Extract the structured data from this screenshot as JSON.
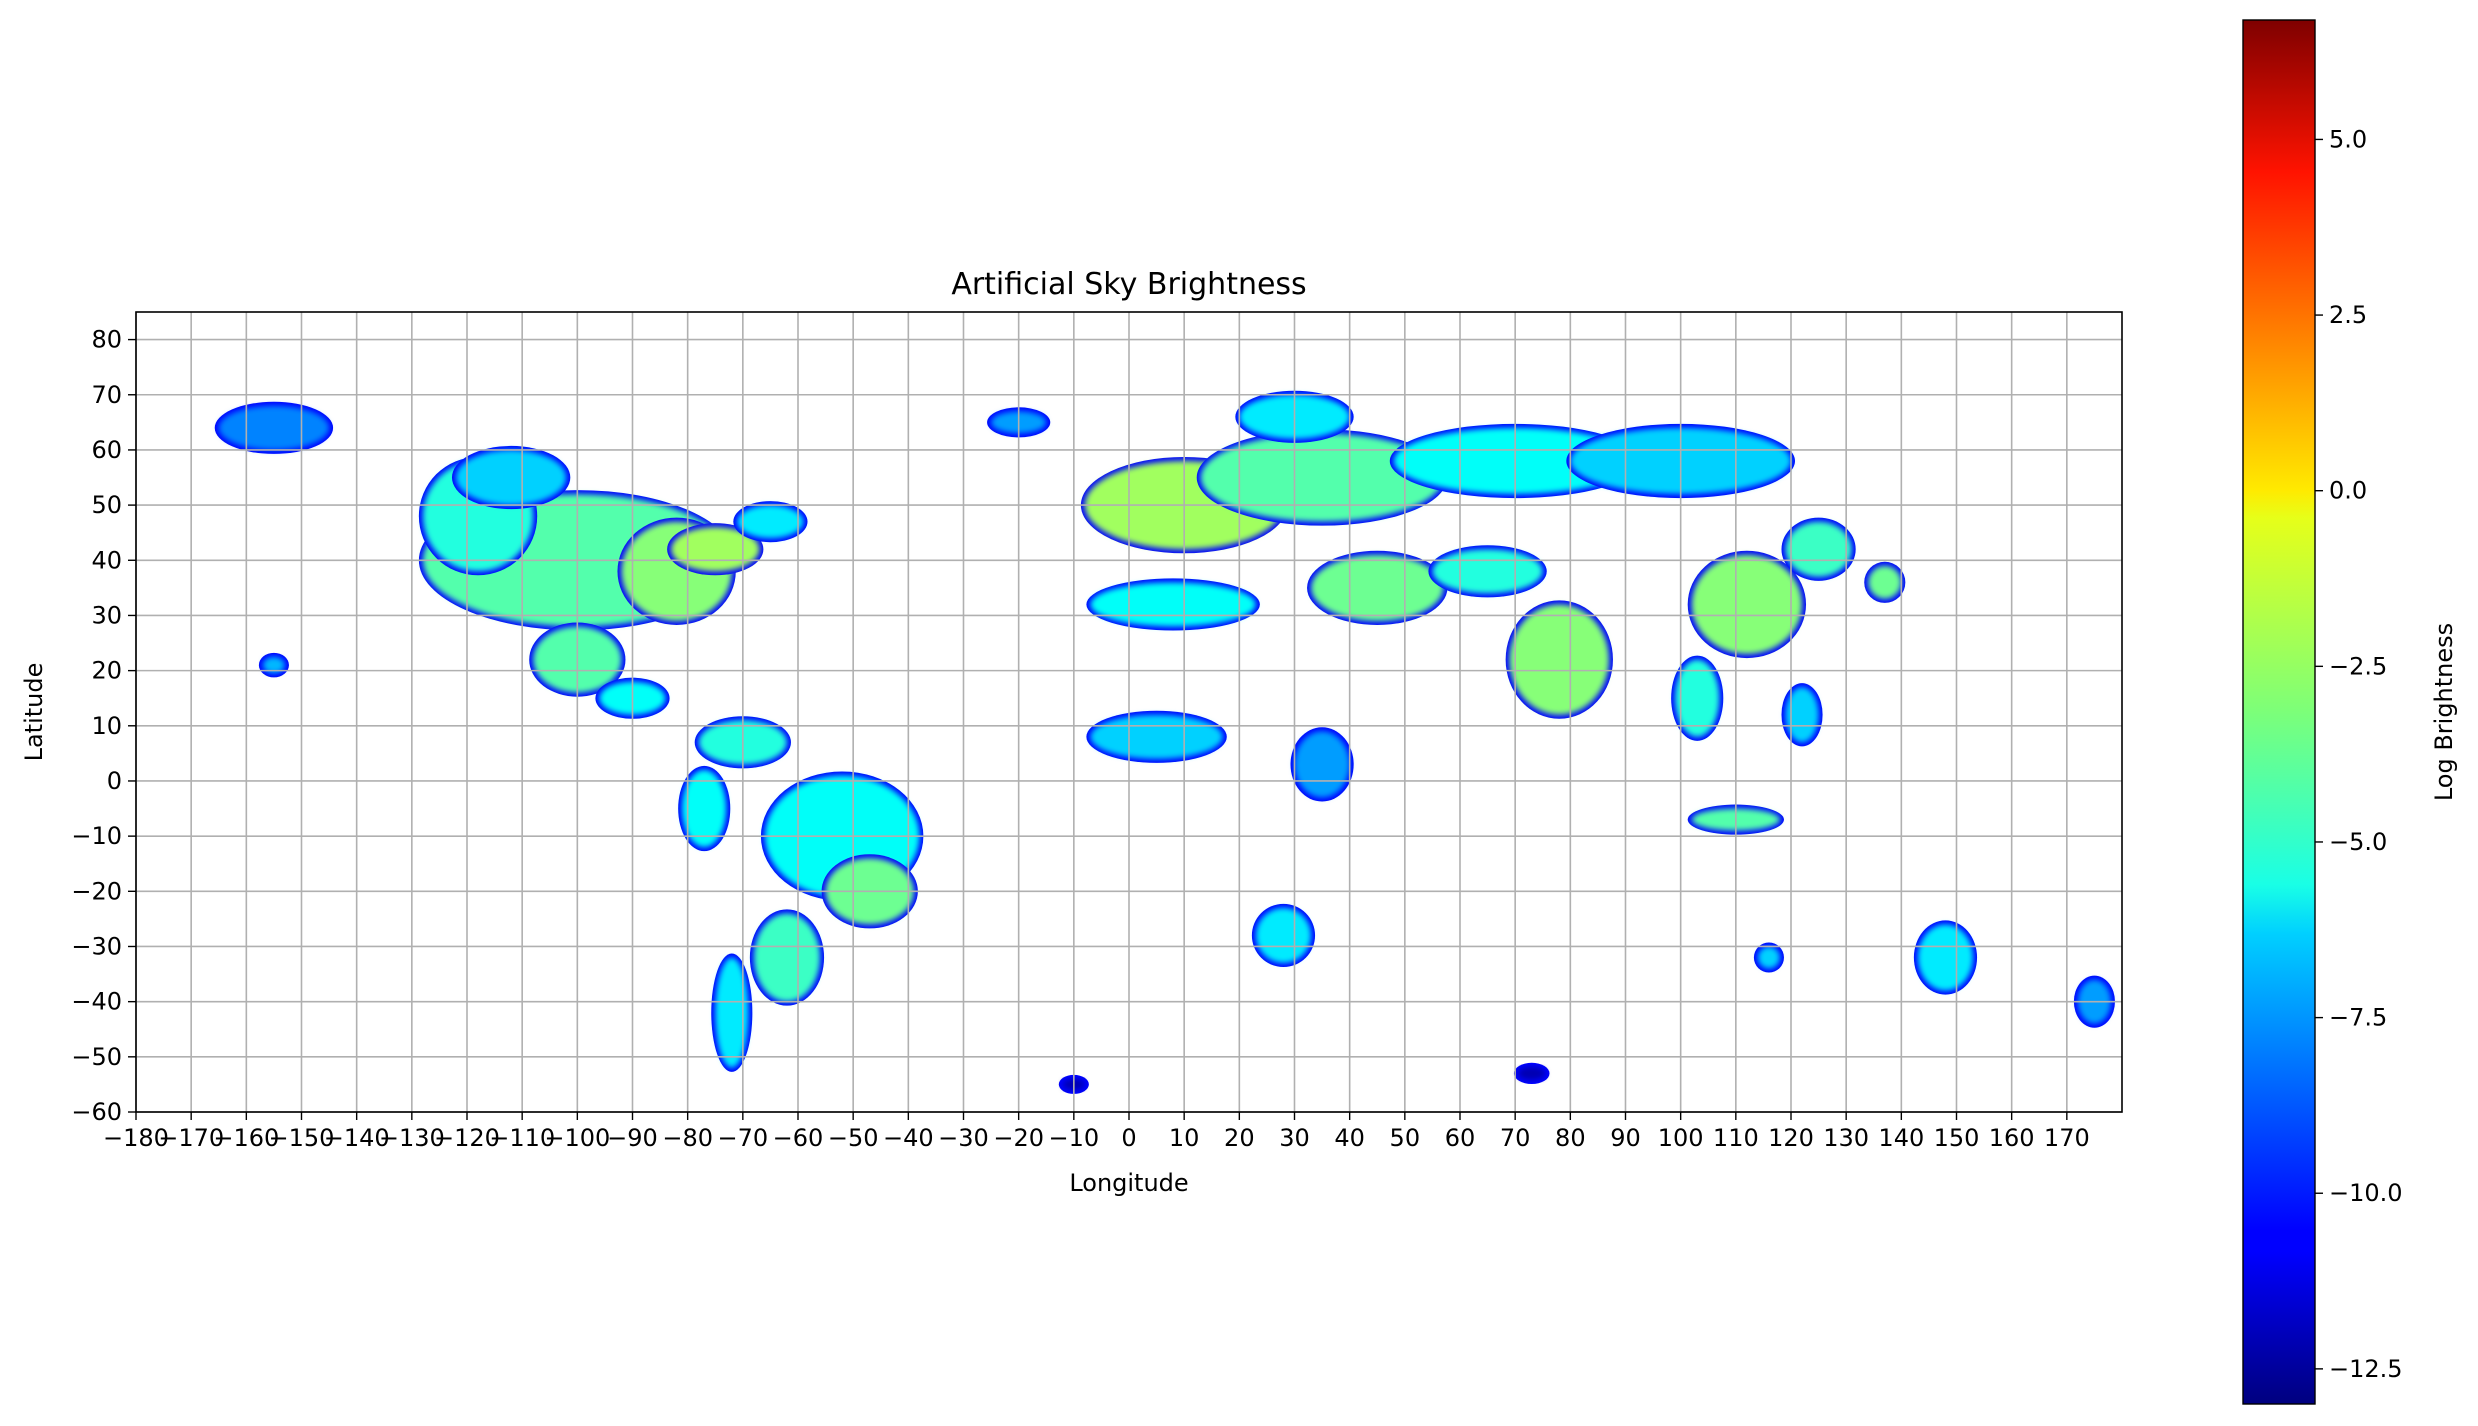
{
  "chart_data": {
    "type": "heatmap",
    "title": "Artificial Sky Brightness",
    "xlabel": "Longitude",
    "ylabel": "Latitude",
    "xlim": [
      -180,
      180
    ],
    "ylim": [
      -60,
      85
    ],
    "xticks": [
      -180,
      -170,
      -160,
      -150,
      -140,
      -130,
      -120,
      -110,
      -100,
      -90,
      -80,
      -70,
      -60,
      -50,
      -40,
      -30,
      -20,
      -10,
      0,
      10,
      20,
      30,
      40,
      50,
      60,
      70,
      80,
      90,
      100,
      110,
      120,
      130,
      140,
      150,
      160,
      170
    ],
    "xtick_labels": [
      "−180",
      "−170",
      "−160",
      "−150",
      "−140",
      "−130",
      "−120",
      "−110",
      "−100",
      "−90",
      "−80",
      "−70",
      "−60",
      "−50",
      "−40",
      "−30",
      "−20",
      "−10",
      "0",
      "10",
      "20",
      "30",
      "40",
      "50",
      "60",
      "70",
      "80",
      "90",
      "100",
      "110",
      "120",
      "130",
      "140",
      "150",
      "160",
      "170"
    ],
    "yticks": [
      -60,
      -50,
      -40,
      -30,
      -20,
      -10,
      0,
      10,
      20,
      30,
      40,
      50,
      60,
      70,
      80
    ],
    "ytick_labels": [
      "−60",
      "−50",
      "−40",
      "−30",
      "−20",
      "−10",
      "0",
      "10",
      "20",
      "30",
      "40",
      "50",
      "60",
      "70",
      "80"
    ],
    "grid": true,
    "colormap": "jet",
    "colorbar": {
      "label": "Log Brightness",
      "range": [
        -13.0,
        6.7
      ],
      "ticks": [
        5.0,
        2.5,
        0.0,
        -2.5,
        -5.0,
        -7.5,
        -10.0,
        -12.5
      ],
      "tick_labels": [
        "5.0",
        "2.5",
        "0.0",
        "−2.5",
        "−5.0",
        "−7.5",
        "−10.0",
        "−12.5"
      ]
    },
    "regions": [
      {
        "lon": -100,
        "lat": 40,
        "rx": 28,
        "ry": 12,
        "value": -4.0
      },
      {
        "lon": -118,
        "lat": 48,
        "rx": 10,
        "ry": 10,
        "value": -5.0
      },
      {
        "lon": -112,
        "lat": 55,
        "rx": 10,
        "ry": 5,
        "value": -6.5
      },
      {
        "lon": -82,
        "lat": 38,
        "rx": 10,
        "ry": 9,
        "value": -3.0
      },
      {
        "lon": -75,
        "lat": 42,
        "rx": 8,
        "ry": 4,
        "value": -2.5
      },
      {
        "lon": -65,
        "lat": 47,
        "rx": 6,
        "ry": 3,
        "value": -6.0
      },
      {
        "lon": -100,
        "lat": 22,
        "rx": 8,
        "ry": 6,
        "value": -4.0
      },
      {
        "lon": -90,
        "lat": 15,
        "rx": 6,
        "ry": 3,
        "value": -5.5
      },
      {
        "lon": -155,
        "lat": 64,
        "rx": 10,
        "ry": 4,
        "value": -8.0
      },
      {
        "lon": -155,
        "lat": 21,
        "rx": 2,
        "ry": 1.5,
        "value": -7.0
      },
      {
        "lon": -70,
        "lat": 7,
        "rx": 8,
        "ry": 4,
        "value": -5.0
      },
      {
        "lon": -52,
        "lat": -10,
        "rx": 14,
        "ry": 11,
        "value": -5.5
      },
      {
        "lon": -47,
        "lat": -20,
        "rx": 8,
        "ry": 6,
        "value": -3.5
      },
      {
        "lon": -62,
        "lat": -32,
        "rx": 6,
        "ry": 8,
        "value": -4.5
      },
      {
        "lon": -72,
        "lat": -42,
        "rx": 3,
        "ry": 10,
        "value": -6.0
      },
      {
        "lon": -77,
        "lat": -5,
        "rx": 4,
        "ry": 7,
        "value": -5.5
      },
      {
        "lon": 10,
        "lat": 50,
        "rx": 18,
        "ry": 8,
        "value": -2.5
      },
      {
        "lon": 35,
        "lat": 55,
        "rx": 22,
        "ry": 8,
        "value": -4.0
      },
      {
        "lon": 70,
        "lat": 58,
        "rx": 22,
        "ry": 6,
        "value": -5.5
      },
      {
        "lon": 100,
        "lat": 58,
        "rx": 20,
        "ry": 6,
        "value": -6.5
      },
      {
        "lon": 30,
        "lat": 66,
        "rx": 10,
        "ry": 4,
        "value": -6.0
      },
      {
        "lon": 45,
        "lat": 35,
        "rx": 12,
        "ry": 6,
        "value": -3.5
      },
      {
        "lon": 65,
        "lat": 38,
        "rx": 10,
        "ry": 4,
        "value": -5.0
      },
      {
        "lon": 78,
        "lat": 22,
        "rx": 9,
        "ry": 10,
        "value": -3.0
      },
      {
        "lon": 112,
        "lat": 32,
        "rx": 10,
        "ry": 9,
        "value": -3.0
      },
      {
        "lon": 125,
        "lat": 42,
        "rx": 6,
        "ry": 5,
        "value": -4.5
      },
      {
        "lon": 137,
        "lat": 36,
        "rx": 3,
        "ry": 3,
        "value": -3.5
      },
      {
        "lon": 103,
        "lat": 15,
        "rx": 4,
        "ry": 7,
        "value": -5.0
      },
      {
        "lon": 110,
        "lat": -7,
        "rx": 8,
        "ry": 2,
        "value": -4.0
      },
      {
        "lon": 122,
        "lat": 12,
        "rx": 3,
        "ry": 5,
        "value": -6.5
      },
      {
        "lon": 5,
        "lat": 8,
        "rx": 12,
        "ry": 4,
        "value": -6.5
      },
      {
        "lon": 35,
        "lat": 3,
        "rx": 5,
        "ry": 6,
        "value": -7.5
      },
      {
        "lon": 8,
        "lat": 32,
        "rx": 15,
        "ry": 4,
        "value": -5.5
      },
      {
        "lon": 28,
        "lat": -28,
        "rx": 5,
        "ry": 5,
        "value": -6.0
      },
      {
        "lon": 148,
        "lat": -32,
        "rx": 5,
        "ry": 6,
        "value": -6.0
      },
      {
        "lon": 116,
        "lat": -32,
        "rx": 2,
        "ry": 2,
        "value": -6.5
      },
      {
        "lon": 175,
        "lat": -40,
        "rx": 3,
        "ry": 4,
        "value": -7.5
      },
      {
        "lon": -20,
        "lat": 65,
        "rx": 5,
        "ry": 2,
        "value": -7.5
      },
      {
        "lon": 73,
        "lat": -53,
        "rx": 2.5,
        "ry": 1.2,
        "value": -12.0
      },
      {
        "lon": -10,
        "lat": -55,
        "rx": 2,
        "ry": 1,
        "value": -12.0
      }
    ]
  }
}
